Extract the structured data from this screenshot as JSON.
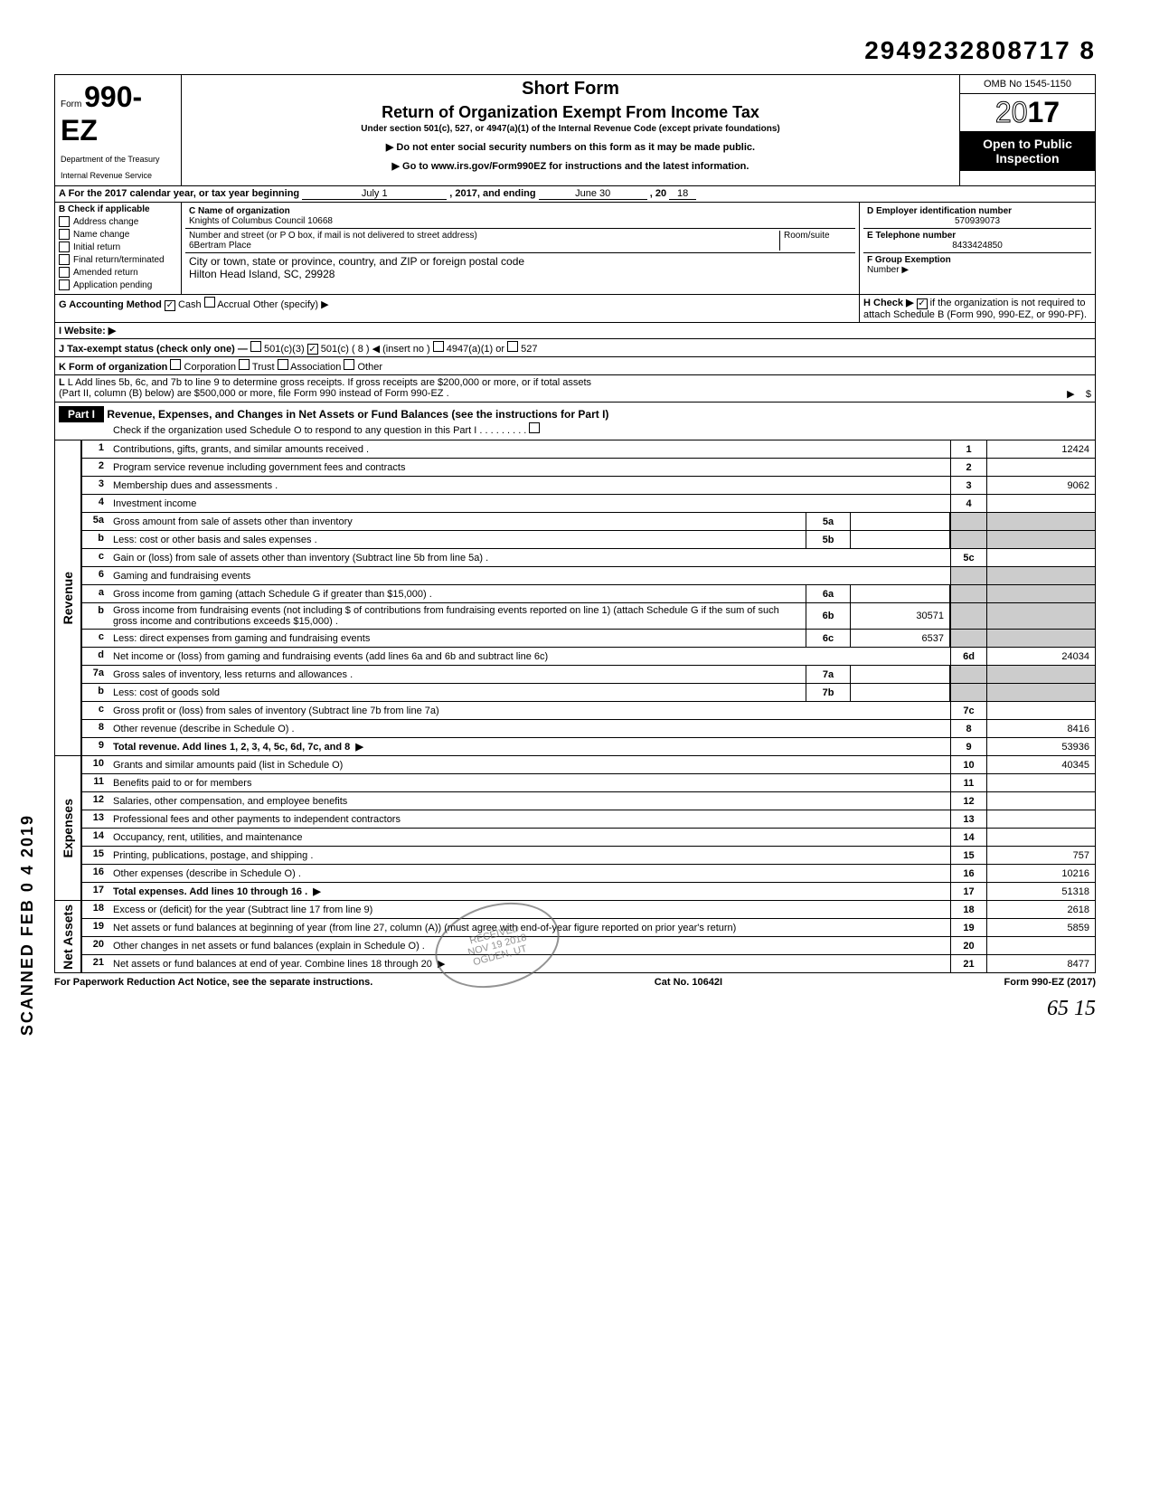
{
  "doc_id": "2949232808717 8",
  "header": {
    "form_prefix": "Form",
    "form_number": "990-EZ",
    "dept1": "Department of the Treasury",
    "dept2": "Internal Revenue Service",
    "short_form": "Short Form",
    "title": "Return of Organization Exempt From Income Tax",
    "subtitle": "Under section 501(c), 527, or 4947(a)(1) of the Internal Revenue Code (except private foundations)",
    "instr1": "▶ Do not enter social security numbers on this form as it may be made public.",
    "instr2": "▶ Go to www.irs.gov/Form990EZ for instructions and the latest information.",
    "omb": "OMB No 1545-1150",
    "year": "2017",
    "open1": "Open to Public",
    "open2": "Inspection"
  },
  "line_a": {
    "text": "A For the 2017 calendar year, or tax year beginning",
    "begin": "July 1",
    "mid": ", 2017, and ending",
    "end_month": "June 30",
    "end_yr_lbl": ", 20",
    "end_yr": "18"
  },
  "section_b": {
    "title": "B Check if applicable",
    "items": [
      "Address change",
      "Name change",
      "Initial return",
      "Final return/terminated",
      "Amended return",
      "Application pending"
    ]
  },
  "name_block": {
    "c_lbl": "C Name of organization",
    "c_val": "Knights of Columbus Council 10668",
    "addr_lbl": "Number and street (or P O box, if mail is not delivered to street address)",
    "room_lbl": "Room/suite",
    "addr_val": "6Bertram Place",
    "city_lbl": "City or town, state or province, country, and ZIP or foreign postal code",
    "city_val": "Hilton Head Island, SC, 29928"
  },
  "right_block": {
    "d_lbl": "D Employer identification number",
    "d_val": "570939073",
    "e_lbl": "E Telephone number",
    "e_val": "8433424850",
    "f_lbl": "F Group Exemption",
    "f_val": "Number ▶"
  },
  "line_g": {
    "lbl": "G Accounting Method",
    "cash": "Cash",
    "accrual": "Accrual",
    "other": "Other (specify) ▶"
  },
  "line_h": {
    "lbl": "H Check ▶",
    "txt": "if the organization is not required to attach Schedule B (Form 990, 990-EZ, or 990-PF)."
  },
  "line_i": {
    "lbl": "I Website: ▶"
  },
  "line_j": {
    "lbl": "J Tax-exempt status (check only one) —",
    "o1": "501(c)(3)",
    "o2": "501(c) ( 8 ) ◀ (insert no )",
    "o3": "4947(a)(1) or",
    "o4": "527"
  },
  "line_k": {
    "lbl": "K Form of organization",
    "o1": "Corporation",
    "o2": "Trust",
    "o3": "Association",
    "o4": "Other"
  },
  "line_l": {
    "l1": "L Add lines 5b, 6c, and 7b to line 9 to determine gross receipts. If gross receipts are $200,000 or more, or if total assets",
    "l2": "(Part II, column (B) below) are $500,000 or more, file Form 990 instead of Form 990-EZ .",
    "arrow": "▶",
    "dollar": "$"
  },
  "part1": {
    "label": "Part I",
    "title": "Revenue, Expenses, and Changes in Net Assets or Fund Balances (see the instructions for Part I)",
    "sub": "Check if the organization used Schedule O to respond to any question in this Part I . . . . . . . . ."
  },
  "sides": {
    "revenue": "Revenue",
    "expenses": "Expenses",
    "net": "Net Assets"
  },
  "lines": [
    {
      "n": "1",
      "d": "Contributions, gifts, grants, and similar amounts received .",
      "box": "1",
      "val": "12424"
    },
    {
      "n": "2",
      "d": "Program service revenue including government fees and contracts",
      "box": "2",
      "val": ""
    },
    {
      "n": "3",
      "d": "Membership dues and assessments .",
      "box": "3",
      "val": "9062"
    },
    {
      "n": "4",
      "d": "Investment income",
      "box": "4",
      "val": ""
    },
    {
      "n": "5a",
      "d": "Gross amount from sale of assets other than inventory",
      "mbox": "5a",
      "mval": "",
      "shade": true
    },
    {
      "n": "b",
      "d": "Less: cost or other basis and sales expenses .",
      "mbox": "5b",
      "mval": "",
      "shade": true
    },
    {
      "n": "c",
      "d": "Gain or (loss) from sale of assets other than inventory (Subtract line 5b from line 5a) .",
      "box": "5c",
      "val": ""
    },
    {
      "n": "6",
      "d": "Gaming and fundraising events",
      "shade": true,
      "noright": true
    },
    {
      "n": "a",
      "d": "Gross income from gaming (attach Schedule G if greater than $15,000) .",
      "mbox": "6a",
      "mval": "",
      "shade": true
    },
    {
      "n": "b",
      "d": "Gross income from fundraising events (not including $                  of contributions from fundraising events reported on line 1) (attach Schedule G if the sum of such gross income and contributions exceeds $15,000) .",
      "mbox": "6b",
      "mval": "30571",
      "shade": true
    },
    {
      "n": "c",
      "d": "Less: direct expenses from gaming and fundraising events",
      "mbox": "6c",
      "mval": "6537",
      "shade": true
    },
    {
      "n": "d",
      "d": "Net income or (loss) from gaming and fundraising events (add lines 6a and 6b and subtract line 6c)",
      "box": "6d",
      "val": "24034"
    },
    {
      "n": "7a",
      "d": "Gross sales of inventory, less returns and allowances .",
      "mbox": "7a",
      "mval": "",
      "shade": true
    },
    {
      "n": "b",
      "d": "Less: cost of goods sold",
      "mbox": "7b",
      "mval": "",
      "shade": true
    },
    {
      "n": "c",
      "d": "Gross profit or (loss) from sales of inventory (Subtract line 7b from line 7a)",
      "box": "7c",
      "val": ""
    },
    {
      "n": "8",
      "d": "Other revenue (describe in Schedule O) .",
      "box": "8",
      "val": "8416"
    },
    {
      "n": "9",
      "d": "Total revenue. Add lines 1, 2, 3, 4, 5c, 6d, 7c, and 8",
      "box": "9",
      "val": "53936",
      "bold": true,
      "arrow": true
    }
  ],
  "exp_lines": [
    {
      "n": "10",
      "d": "Grants and similar amounts paid (list in Schedule O)",
      "box": "10",
      "val": "40345"
    },
    {
      "n": "11",
      "d": "Benefits paid to or for members",
      "box": "11",
      "val": ""
    },
    {
      "n": "12",
      "d": "Salaries, other compensation, and employee benefits",
      "box": "12",
      "val": ""
    },
    {
      "n": "13",
      "d": "Professional fees and other payments to independent contractors",
      "box": "13",
      "val": ""
    },
    {
      "n": "14",
      "d": "Occupancy, rent, utilities, and maintenance",
      "box": "14",
      "val": ""
    },
    {
      "n": "15",
      "d": "Printing, publications, postage, and shipping .",
      "box": "15",
      "val": "757"
    },
    {
      "n": "16",
      "d": "Other expenses (describe in Schedule O) .",
      "box": "16",
      "val": "10216"
    },
    {
      "n": "17",
      "d": "Total expenses. Add lines 10 through 16 .",
      "box": "17",
      "val": "51318",
      "bold": true,
      "arrow": true
    }
  ],
  "net_lines": [
    {
      "n": "18",
      "d": "Excess or (deficit) for the year (Subtract line 17 from line 9)",
      "box": "18",
      "val": "2618"
    },
    {
      "n": "19",
      "d": "Net assets or fund balances at beginning of year (from line 27, column (A)) (must agree with end-of-year figure reported on prior year's return)",
      "box": "19",
      "val": "5859"
    },
    {
      "n": "20",
      "d": "Other changes in net assets or fund balances (explain in Schedule O) .",
      "box": "20",
      "val": ""
    },
    {
      "n": "21",
      "d": "Net assets or fund balances at end of year. Combine lines 18 through 20",
      "box": "21",
      "val": "8477",
      "arrow": true
    }
  ],
  "footer": {
    "left": "For Paperwork Reduction Act Notice, see the separate instructions.",
    "mid": "Cat No. 10642I",
    "right": "Form 990-EZ (2017)"
  },
  "stamp": {
    "l1": "RECEIVED",
    "l2": "NOV 19 2018",
    "l3": "OGDEN, UT"
  },
  "scanned": "SCANNED FEB 0 4 2019",
  "handwrite": "65    15"
}
